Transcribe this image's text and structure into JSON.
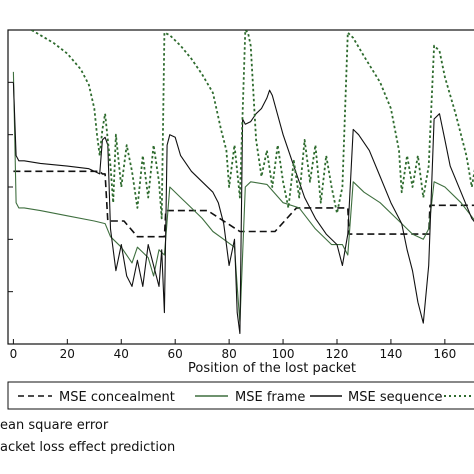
{
  "chart_data": {
    "type": "line",
    "xlabel": "Position of the lost packet",
    "ylabel": "",
    "xlim": [
      -2,
      176
    ],
    "ylim": [
      -6,
      0
    ],
    "xticks": [
      0,
      20,
      40,
      60,
      80,
      100,
      120,
      140,
      160
    ],
    "grid": false,
    "legend_position": "bottom",
    "series": [
      {
        "name": "MSE concealment",
        "style": "dashed",
        "color": "#111111",
        "x": [
          0,
          32,
          33,
          34,
          35,
          40,
          41,
          46,
          46.5,
          56,
          56.5,
          70,
          72,
          84,
          84.5,
          96,
          97,
          105,
          106,
          124,
          124.5,
          139,
          140,
          154,
          154.5,
          166,
          167,
          176
        ],
        "y": [
          -2.7,
          -2.7,
          -2.75,
          -2.75,
          -3.65,
          -3.65,
          -3.65,
          -3.95,
          -3.95,
          -3.95,
          -3.45,
          -3.45,
          -3.45,
          -3.85,
          -3.85,
          -3.85,
          -3.85,
          -3.4,
          -3.4,
          -3.4,
          -3.9,
          -3.9,
          -3.9,
          -3.9,
          -3.35,
          -3.35,
          -3.35,
          -3.35
        ]
      },
      {
        "name": "MSE frame",
        "style": "solid",
        "color": "#3f6f3f",
        "x": [
          0,
          1,
          2,
          4,
          10,
          20,
          30,
          34,
          36,
          40,
          44,
          46,
          48,
          50,
          52,
          54,
          56,
          58,
          62,
          66,
          70,
          74,
          78,
          82,
          83,
          84,
          86,
          88,
          94,
          100,
          106,
          112,
          118,
          122,
          124,
          126,
          130,
          136,
          142,
          148,
          152,
          154,
          156,
          160,
          166,
          172,
          176
        ],
        "y": [
          -0.8,
          -3.3,
          -3.4,
          -3.4,
          -3.45,
          -3.55,
          -3.65,
          -3.7,
          -3.95,
          -4.15,
          -4.45,
          -4.15,
          -4.25,
          -4.35,
          -4.7,
          -4.2,
          -4.3,
          -3.0,
          -3.2,
          -3.4,
          -3.6,
          -3.85,
          -4.0,
          -4.15,
          -4.9,
          -5.6,
          -3.0,
          -2.9,
          -2.95,
          -3.3,
          -3.4,
          -3.8,
          -4.1,
          -4.1,
          -4.3,
          -2.9,
          -3.1,
          -3.3,
          -3.6,
          -3.9,
          -4.0,
          -3.8,
          -2.9,
          -3.0,
          -3.3,
          -3.7,
          -4.1
        ]
      },
      {
        "name": "MSE sequence",
        "style": "solid",
        "color": "#111111",
        "x": [
          0,
          1,
          2,
          4,
          10,
          20,
          28,
          30,
          32,
          33,
          34,
          35,
          36,
          38,
          40,
          42,
          44,
          46,
          48,
          50,
          52,
          54,
          55,
          56,
          57,
          58,
          60,
          62,
          66,
          70,
          74,
          76,
          78,
          80,
          82,
          83,
          84,
          85,
          86,
          88,
          90,
          92,
          94,
          95,
          96,
          100,
          104,
          108,
          112,
          116,
          120,
          122,
          124,
          126,
          128,
          132,
          136,
          140,
          144,
          146,
          148,
          150,
          152,
          154,
          156,
          158,
          160,
          162,
          166,
          170,
          176
        ],
        "y": [
          -1.0,
          -2.4,
          -2.5,
          -2.5,
          -2.55,
          -2.6,
          -2.65,
          -2.7,
          -2.75,
          -2.1,
          -2.05,
          -2.2,
          -3.8,
          -4.6,
          -4.1,
          -4.7,
          -4.9,
          -4.4,
          -4.9,
          -4.1,
          -4.5,
          -4.9,
          -4.2,
          -5.4,
          -2.2,
          -2.0,
          -2.05,
          -2.4,
          -2.7,
          -2.9,
          -3.1,
          -3.3,
          -3.7,
          -4.5,
          -4.0,
          -5.4,
          -5.8,
          -1.7,
          -1.8,
          -1.75,
          -1.6,
          -1.5,
          -1.3,
          -1.15,
          -1.25,
          -2.0,
          -2.6,
          -3.2,
          -3.6,
          -3.9,
          -4.1,
          -4.5,
          -3.9,
          -1.9,
          -2.0,
          -2.3,
          -2.8,
          -3.3,
          -3.7,
          -4.2,
          -4.6,
          -5.2,
          -5.6,
          -4.5,
          -1.7,
          -1.6,
          -2.1,
          -2.6,
          -3.1,
          -3.6,
          -4.0
        ]
      },
      {
        "name": "",
        "style": "dotted",
        "color": "#2e6b2e",
        "x": [
          0,
          5,
          10,
          15,
          20,
          25,
          28,
          30,
          31,
          32,
          33,
          34,
          36,
          37,
          38,
          40,
          42,
          44,
          46,
          48,
          50,
          52,
          54,
          55,
          56,
          58,
          62,
          66,
          70,
          74,
          77,
          79,
          80,
          82,
          84,
          86,
          87,
          88,
          90,
          92,
          94,
          96,
          98,
          100,
          102,
          104,
          106,
          108,
          110,
          112,
          114,
          116,
          118,
          120,
          122,
          124,
          126,
          130,
          136,
          140,
          143,
          144,
          146,
          148,
          150,
          152,
          154,
          156,
          158,
          160,
          164,
          168,
          170,
          172,
          176
        ],
        "y": [
          0.15,
          0.05,
          -0.1,
          -0.25,
          -0.45,
          -0.75,
          -1.05,
          -1.5,
          -2.0,
          -2.4,
          -1.9,
          -1.6,
          -2.6,
          -3.3,
          -2.0,
          -3.0,
          -2.2,
          -2.7,
          -3.4,
          -2.4,
          -3.2,
          -2.2,
          -2.9,
          -3.6,
          -0.05,
          -0.1,
          -0.3,
          -0.55,
          -0.85,
          -1.2,
          -1.9,
          -2.3,
          -3.0,
          -2.2,
          -3.2,
          -0.0,
          -0.05,
          -0.3,
          -2.1,
          -2.8,
          -2.3,
          -3.0,
          -2.2,
          -2.9,
          -3.4,
          -2.5,
          -3.2,
          -2.1,
          -2.9,
          -2.2,
          -3.3,
          -2.4,
          -3.0,
          -3.5,
          -3.0,
          -0.05,
          -0.15,
          -0.5,
          -1.0,
          -1.5,
          -2.3,
          -3.1,
          -2.4,
          -3.0,
          -2.4,
          -3.2,
          -2.6,
          -0.3,
          -0.4,
          -0.9,
          -1.6,
          -2.4,
          -3.0,
          -2.4,
          -3.2
        ]
      }
    ]
  },
  "legend": {
    "items": [
      {
        "label": "MSE concealment",
        "style": "dashed",
        "color": "#111111"
      },
      {
        "label": "MSE frame",
        "style": "solid",
        "color": "#3f6f3f"
      },
      {
        "label": "MSE sequence",
        "style": "solid",
        "color": "#111111"
      },
      {
        "label": "",
        "style": "dotted",
        "color": "#2e6b2e"
      }
    ]
  },
  "notes": {
    "line1": "ean square error",
    "line2": "acket loss effect prediction"
  }
}
